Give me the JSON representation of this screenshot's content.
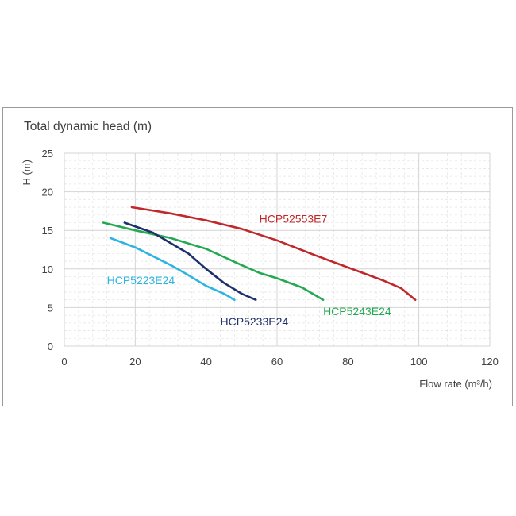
{
  "chart_data": {
    "type": "line",
    "title": "Total dynamic head (m)",
    "ylabel": "H (m)",
    "xlabel": "Flow rate (m³/h)",
    "xlim": [
      0,
      120
    ],
    "ylim": [
      0,
      25
    ],
    "xticks": [
      0,
      20,
      40,
      60,
      80,
      100,
      120
    ],
    "yticks": [
      0,
      5,
      10,
      15,
      20,
      25
    ],
    "grid": true,
    "series": [
      {
        "name": "HCP52553E7",
        "color": "#c0282a",
        "x": [
          19,
          30,
          40,
          50,
          60,
          70,
          80,
          90,
          95,
          99
        ],
        "y": [
          18,
          17.2,
          16.3,
          15.2,
          13.7,
          11.9,
          10.2,
          8.5,
          7.5,
          6
        ]
      },
      {
        "name": "HCP5243E24",
        "color": "#23a950",
        "x": [
          11,
          20,
          30,
          40,
          50,
          55,
          60,
          67,
          73
        ],
        "y": [
          16,
          15,
          14,
          12.6,
          10.5,
          9.5,
          8.8,
          7.6,
          6
        ]
      },
      {
        "name": "HCP5233E24",
        "color": "#1f2f6b",
        "x": [
          17,
          25,
          35,
          40,
          45,
          50,
          54
        ],
        "y": [
          16,
          14.7,
          12,
          10,
          8.2,
          6.8,
          6
        ]
      },
      {
        "name": "HCP5223E24",
        "color": "#2cb4e2",
        "x": [
          13,
          20,
          30,
          35,
          40,
          45,
          48
        ],
        "y": [
          14,
          12.8,
          10.5,
          9.2,
          7.8,
          6.8,
          6
        ]
      }
    ],
    "annotations": [
      {
        "text": "HCP52553E7",
        "series": "HCP52553E7"
      },
      {
        "text": "HCP5243E24",
        "series": "HCP5243E24"
      },
      {
        "text": "HCP5233E24",
        "series": "HCP5233E24"
      },
      {
        "text": "HCP5223E24",
        "series": "HCP5223E24"
      }
    ]
  }
}
